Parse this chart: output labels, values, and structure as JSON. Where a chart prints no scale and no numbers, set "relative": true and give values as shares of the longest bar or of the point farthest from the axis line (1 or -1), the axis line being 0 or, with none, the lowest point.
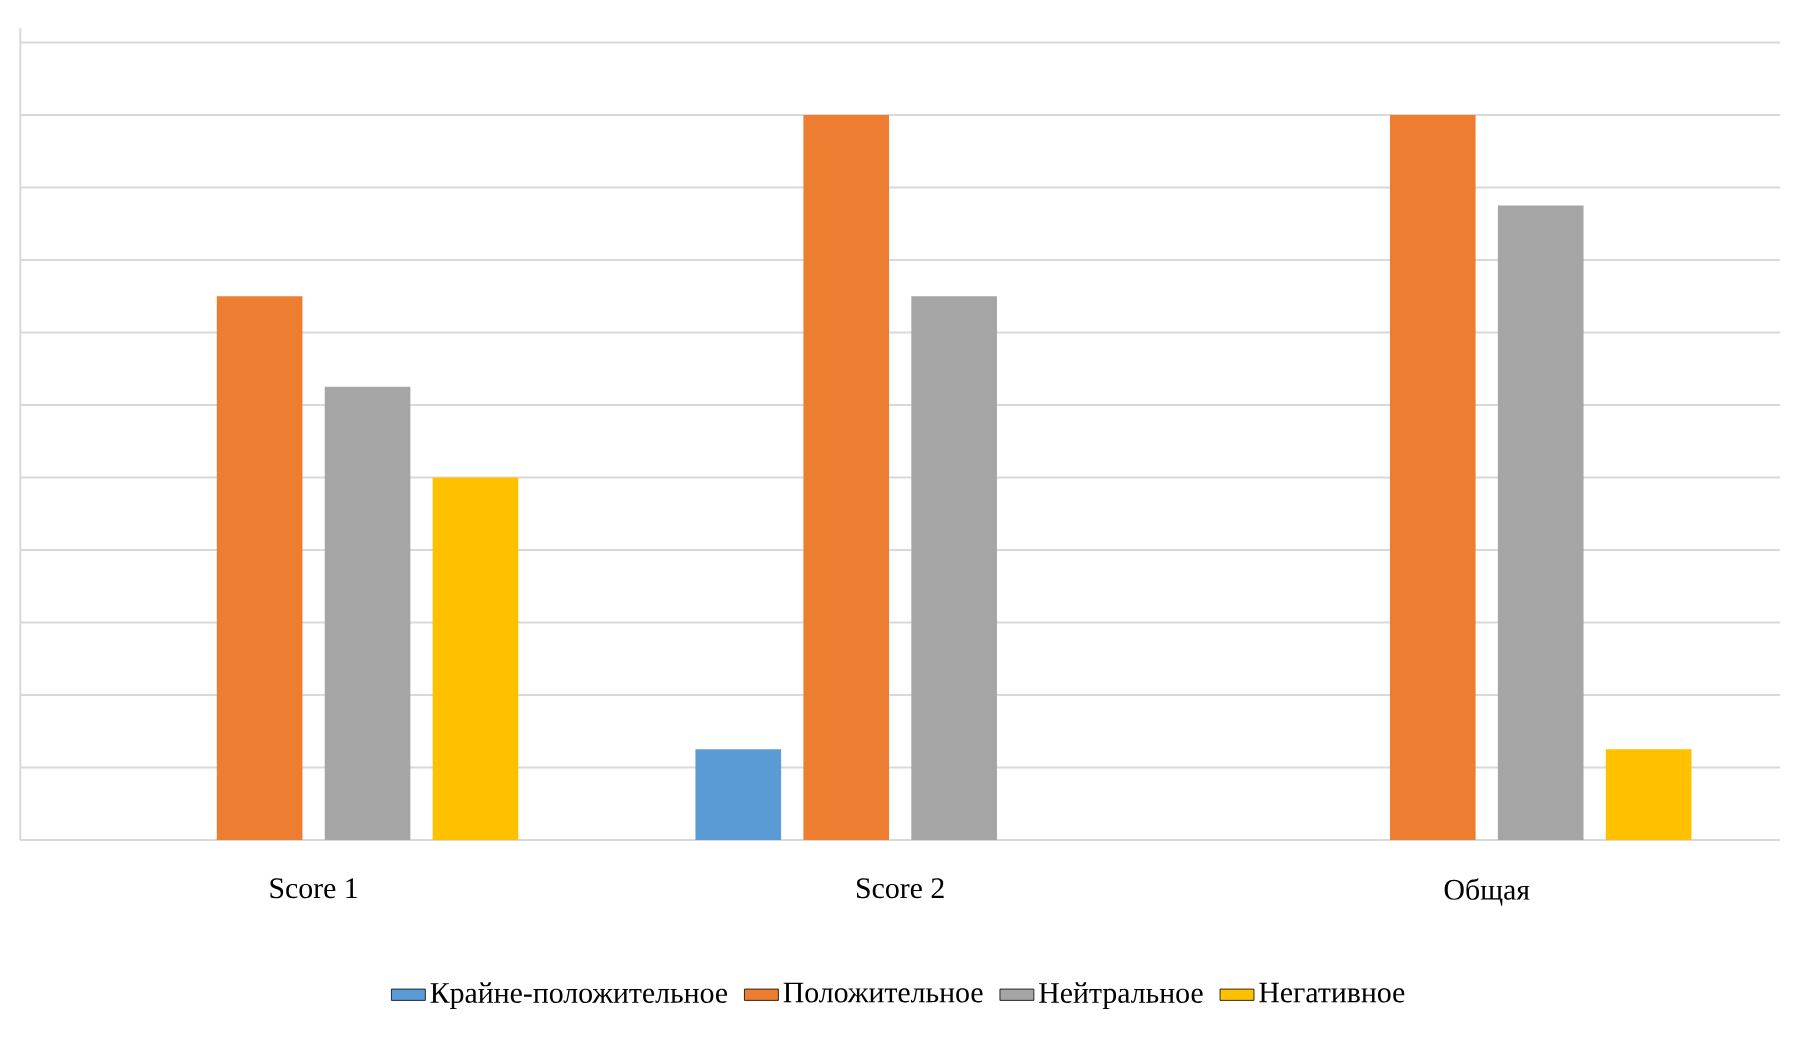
{
  "chart_data": {
    "type": "bar",
    "relative": true,
    "grid": "y",
    "legend": "bottom",
    "categories": [
      "Score 1",
      "Score 2",
      "Общая"
    ],
    "series": [
      {
        "name": "Крайне-положительное",
        "color": "#5b9bd5",
        "values": [
          null,
          0.125,
          null
        ]
      },
      {
        "name": "Положительное",
        "color": "#ed7d31",
        "values": [
          0.75,
          1,
          1
        ]
      },
      {
        "name": "Нейтральное",
        "color": "#a5a5a5",
        "values": [
          0.625,
          0.75,
          0.875
        ]
      },
      {
        "name": "Негативное",
        "color": "#ffc000",
        "values": [
          0.5,
          null,
          0.125
        ]
      }
    ]
  }
}
